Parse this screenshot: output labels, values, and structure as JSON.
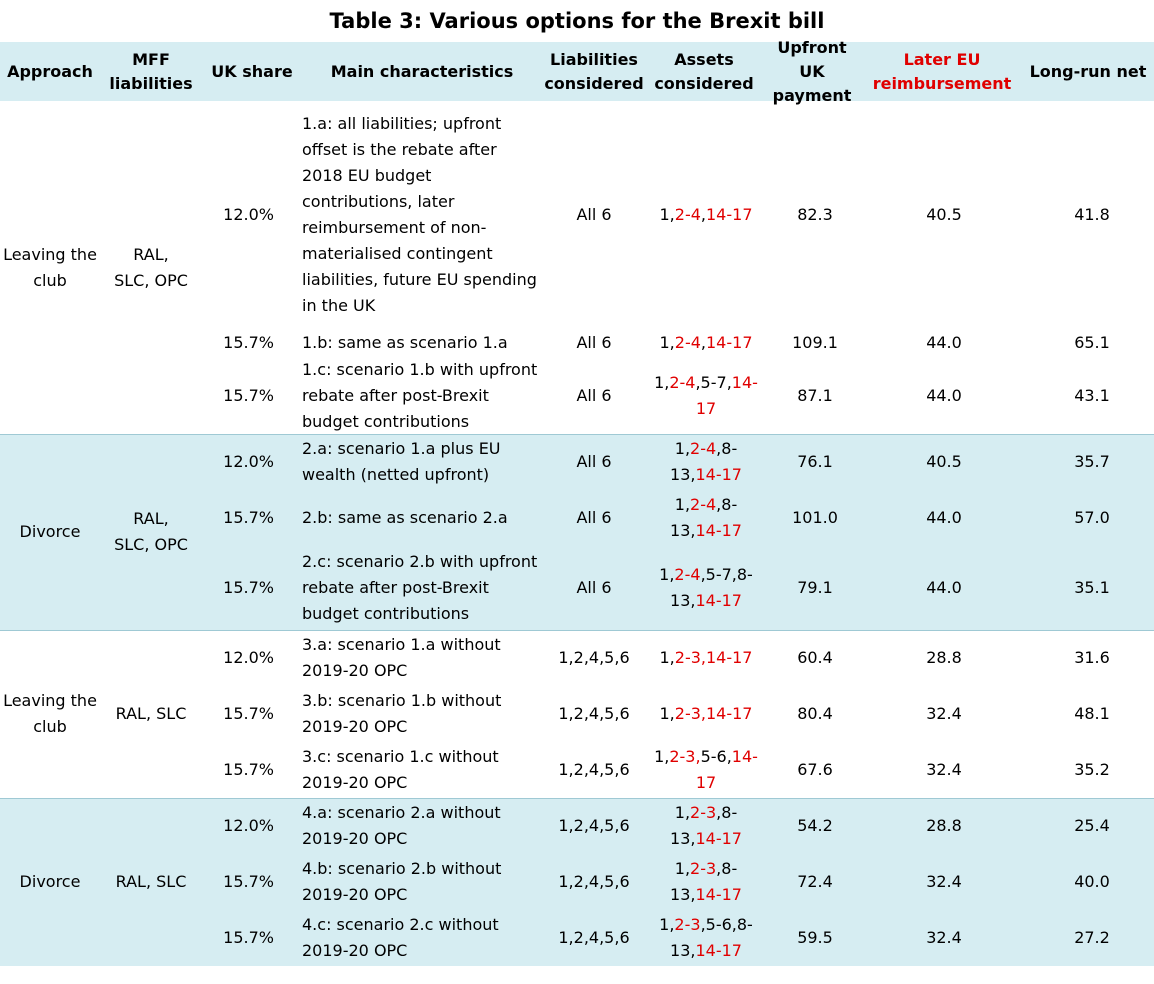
{
  "title": "Table 3: Various options for the Brexit bill",
  "headers": {
    "approach": "Approach",
    "mff": "MFF liabilities",
    "share": "UK share",
    "main": "Main characteristics",
    "liab": "Liabilities considered",
    "assets": "Assets considered",
    "upfront": "Upfront UK payment",
    "later": "Later EU reimbursement",
    "net": "Long-run net"
  },
  "groups": [
    {
      "approach": "Leaving the club",
      "mff": "RAL, SLC, OPC"
    },
    {
      "approach": "Divorce",
      "mff": "RAL, SLC, OPC"
    },
    {
      "approach": "Leaving the club",
      "mff": "RAL, SLC"
    },
    {
      "approach": "Divorce",
      "mff": "RAL, SLC"
    }
  ],
  "rows": [
    {
      "share": "12.0%",
      "main": "1.a: all liabilities; upfront offset is the rebate after 2018 EU budget contributions, later reimbursement of non-materialised contingent liabilities, future EU spending in the UK",
      "liab": "All 6",
      "assets": [
        {
          "t": "1,",
          "r": false
        },
        {
          "t": "2-4",
          "r": true
        },
        {
          "t": ",",
          "r": false
        },
        {
          "t": "14-17",
          "r": true
        }
      ],
      "upfront": "82.3",
      "later": "40.5",
      "net": "41.8"
    },
    {
      "share": "15.7%",
      "main": "1.b: same as scenario 1.a",
      "liab": "All 6",
      "assets": [
        {
          "t": "1,",
          "r": false
        },
        {
          "t": "2-4",
          "r": true
        },
        {
          "t": ",",
          "r": false
        },
        {
          "t": "14-17",
          "r": true
        }
      ],
      "upfront": "109.1",
      "later": "44.0",
      "net": "65.1"
    },
    {
      "share": "15.7%",
      "main": "1.c: scenario 1.b with upfront rebate after post-Brexit budget contributions",
      "liab": "All 6",
      "assets": [
        {
          "t": "1,",
          "r": false
        },
        {
          "t": "2-4",
          "r": true
        },
        {
          "t": ",5-7,",
          "r": false
        },
        {
          "t": "14-17",
          "r": true
        }
      ],
      "upfront": "87.1",
      "later": "44.0",
      "net": "43.1"
    },
    {
      "share": "12.0%",
      "main": "2.a: scenario 1.a plus EU wealth (netted upfront)",
      "liab": "All 6",
      "assets": [
        {
          "t": "1,",
          "r": false
        },
        {
          "t": "2-4",
          "r": true
        },
        {
          "t": ",8-13,",
          "r": false
        },
        {
          "t": "14-17",
          "r": true
        }
      ],
      "upfront": "76.1",
      "later": "40.5",
      "net": "35.7"
    },
    {
      "share": "15.7%",
      "main": "2.b: same as scenario 2.a",
      "liab": "All 6",
      "assets": [
        {
          "t": "1,",
          "r": false
        },
        {
          "t": "2-4",
          "r": true
        },
        {
          "t": ",8-13,",
          "r": false
        },
        {
          "t": "14-17",
          "r": true
        }
      ],
      "upfront": "101.0",
      "later": "44.0",
      "net": "57.0"
    },
    {
      "share": "15.7%",
      "main": "2.c: scenario 2.b with upfront rebate after post-Brexit budget contributions",
      "liab": "All 6",
      "assets": [
        {
          "t": "1,",
          "r": false
        },
        {
          "t": "2-4",
          "r": true
        },
        {
          "t": ",5-7,8-13,",
          "r": false
        },
        {
          "t": "14-17",
          "r": true
        }
      ],
      "upfront": "79.1",
      "later": "44.0",
      "net": "35.1"
    },
    {
      "share": "12.0%",
      "main": "3.a: scenario 1.a without 2019-20 OPC",
      "liab": "1,2,4,5,6",
      "assets": [
        {
          "t": "1,",
          "r": false
        },
        {
          "t": "2-3,14-17",
          "r": true
        }
      ],
      "upfront": "60.4",
      "later": "28.8",
      "net": "31.6"
    },
    {
      "share": "15.7%",
      "main": "3.b: scenario 1.b without 2019-20 OPC",
      "liab": "1,2,4,5,6",
      "assets": [
        {
          "t": "1,",
          "r": false
        },
        {
          "t": "2-3,14-17",
          "r": true
        }
      ],
      "upfront": "80.4",
      "later": "32.4",
      "net": "48.1"
    },
    {
      "share": "15.7%",
      "main": "3.c: scenario 1.c without 2019-20 OPC",
      "liab": "1,2,4,5,6",
      "assets": [
        {
          "t": "1,",
          "r": false
        },
        {
          "t": "2-3,",
          "r": true
        },
        {
          "t": "5-6,",
          "r": false
        },
        {
          "t": "14-17",
          "r": true
        }
      ],
      "upfront": "67.6",
      "later": "32.4",
      "net": "35.2"
    },
    {
      "share": "12.0%",
      "main": "4.a: scenario 2.a without 2019-20 OPC",
      "liab": "1,2,4,5,6",
      "assets": [
        {
          "t": "1,",
          "r": false
        },
        {
          "t": "2-3",
          "r": true
        },
        {
          "t": ",8-13,",
          "r": false
        },
        {
          "t": "14-17",
          "r": true
        }
      ],
      "upfront": "54.2",
      "later": "28.8",
      "net": "25.4"
    },
    {
      "share": "15.7%",
      "main": "4.b: scenario 2.b without 2019-20 OPC",
      "liab": "1,2,4,5,6",
      "assets": [
        {
          "t": "1,",
          "r": false
        },
        {
          "t": "2-3",
          "r": true
        },
        {
          "t": ",8-13,",
          "r": false
        },
        {
          "t": "14-17",
          "r": true
        }
      ],
      "upfront": "72.4",
      "later": "32.4",
      "net": "40.0"
    },
    {
      "share": "15.7%",
      "main": "4.c: scenario 2.c without 2019-20 OPC",
      "liab": "1,2,4,5,6",
      "assets": [
        {
          "t": "1,",
          "r": false
        },
        {
          "t": "2-3",
          "r": true
        },
        {
          "t": ",5-6,8-13,",
          "r": false
        },
        {
          "t": "14-17",
          "r": true
        }
      ],
      "upfront": "59.5",
      "later": "32.4",
      "net": "27.2"
    }
  ]
}
